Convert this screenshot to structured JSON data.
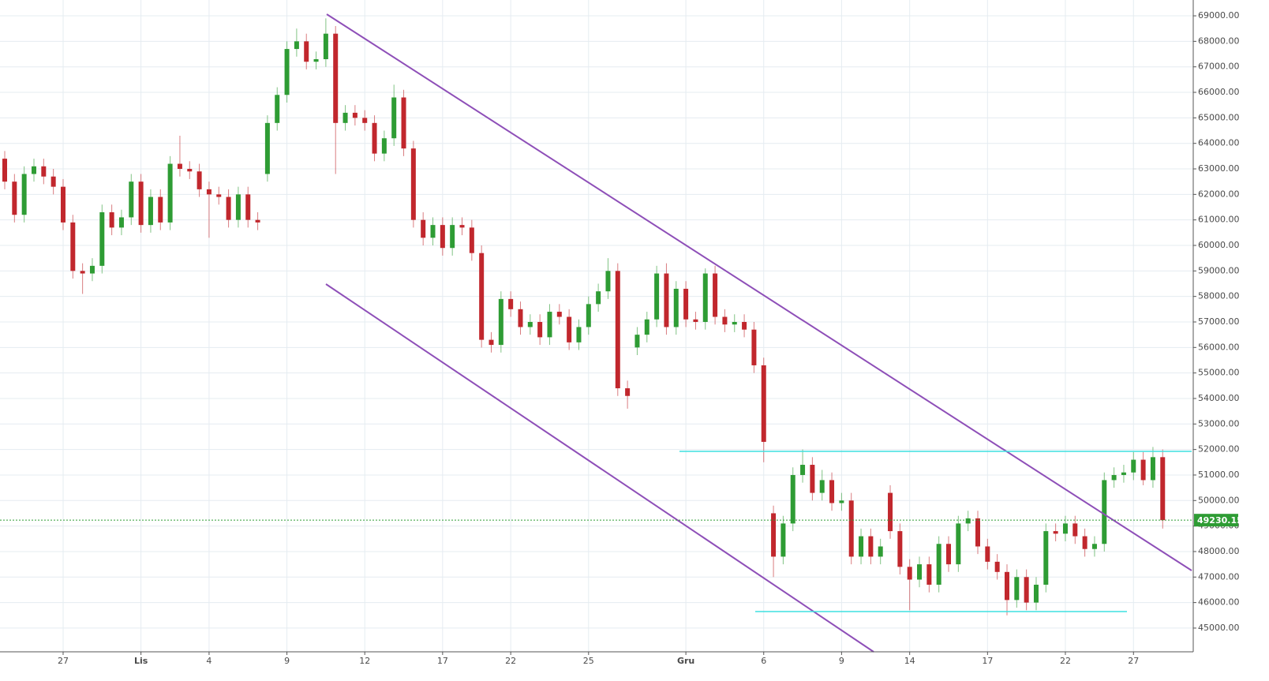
{
  "chart_data": {
    "type": "candlestick",
    "up_color": "#2e9c34",
    "down_color": "#c1272d",
    "grid": true,
    "last_price": 49230.15,
    "last_price_color": "#2e9c34",
    "categories": [
      null,
      null,
      null,
      null,
      null,
      null,
      "27",
      null,
      null,
      null,
      null,
      null,
      null,
      null,
      "Lis",
      null,
      null,
      null,
      null,
      null,
      null,
      "4",
      null,
      null,
      null,
      null,
      null,
      null,
      null,
      "9",
      null,
      null,
      null,
      null,
      null,
      null,
      null,
      "12",
      null,
      null,
      null,
      null,
      null,
      null,
      null,
      "17",
      null,
      null,
      null,
      null,
      null,
      null,
      "22",
      null,
      null,
      null,
      null,
      null,
      null,
      null,
      "25",
      null,
      null,
      null,
      null,
      null,
      null,
      null,
      null,
      null,
      "Gru",
      null,
      null,
      null,
      null,
      null,
      null,
      null,
      "6",
      null,
      null,
      null,
      null,
      null,
      null,
      null,
      "9",
      null,
      null,
      null,
      null,
      null,
      null,
      "14",
      null,
      null,
      null,
      null,
      null,
      null,
      null,
      "17",
      null,
      null,
      null,
      null,
      null,
      null,
      null,
      "22",
      null,
      null,
      null,
      null,
      null,
      null,
      "27",
      null,
      null,
      null
    ],
    "open": [
      63400,
      62500,
      61200,
      62800,
      63100,
      62700,
      62300,
      60900,
      59000,
      58900,
      59200,
      61300,
      60700,
      61100,
      62500,
      60800,
      61900,
      60900,
      63200,
      63000,
      62900,
      62200,
      62000,
      61900,
      61000,
      62000,
      61000,
      62800,
      64800,
      65900,
      67700,
      68000,
      67200,
      67300,
      68300,
      64800,
      65200,
      65000,
      64800,
      63600,
      64200,
      65800,
      63800,
      61000,
      60300,
      60800,
      59900,
      60800,
      60700,
      59700,
      56300,
      56100,
      57900,
      57500,
      56800,
      57000,
      56400,
      57400,
      57200,
      56200,
      56800,
      57700,
      58200,
      59000,
      54400,
      56000,
      56500,
      57100,
      58900,
      56800,
      58300,
      57100,
      57000,
      58900,
      57200,
      56900,
      57000,
      56700,
      55300,
      49500,
      47800,
      49100,
      51000,
      51400,
      50300,
      50800,
      49900,
      50000,
      47800,
      48600,
      47800,
      50300,
      48800,
      47400,
      46900,
      47500,
      46700,
      48300,
      47500,
      49100,
      49300,
      48200,
      47600,
      47200,
      46100,
      47000,
      46000,
      46700,
      48800,
      48700,
      49100,
      48600,
      48100,
      48300,
      50800,
      51000,
      51100,
      51600,
      50800,
      51700
    ],
    "high": [
      63700,
      62800,
      63100,
      63400,
      63400,
      63000,
      62600,
      61200,
      59300,
      59500,
      61600,
      61600,
      61400,
      62800,
      62800,
      62200,
      62200,
      63500,
      64300,
      63300,
      63200,
      62500,
      62300,
      62200,
      62300,
      62300,
      61300,
      65100,
      66200,
      68000,
      68500,
      68300,
      67600,
      68900,
      68600,
      65500,
      65500,
      65300,
      65100,
      64500,
      66300,
      66100,
      64100,
      61300,
      61100,
      61100,
      61100,
      61100,
      61000,
      60000,
      56600,
      58200,
      58200,
      57800,
      57300,
      57300,
      57700,
      57700,
      57500,
      57100,
      58000,
      58500,
      59500,
      59300,
      54700,
      56800,
      57400,
      59200,
      59300,
      58600,
      58600,
      57400,
      59100,
      59200,
      57500,
      57300,
      57300,
      57000,
      55600,
      49800,
      49400,
      51300,
      52000,
      51700,
      51200,
      51100,
      50300,
      50300,
      48900,
      48900,
      48500,
      50600,
      49100,
      47700,
      47800,
      47800,
      48600,
      48600,
      49400,
      49600,
      49600,
      48500,
      47900,
      47500,
      47300,
      47300,
      47000,
      49100,
      49100,
      49400,
      49400,
      48900,
      48600,
      51100,
      51300,
      51400,
      51900,
      51900,
      52100,
      52000
    ],
    "low": [
      62200,
      60900,
      60900,
      62500,
      62400,
      62000,
      60600,
      58700,
      58100,
      58600,
      58900,
      60400,
      60400,
      60800,
      60500,
      60500,
      60600,
      60600,
      62700,
      62600,
      61900,
      60300,
      61600,
      60700,
      60700,
      60700,
      60600,
      62500,
      64500,
      65600,
      67400,
      66900,
      66900,
      67000,
      62800,
      64500,
      64700,
      64500,
      63300,
      63300,
      63900,
      63500,
      60700,
      60000,
      60000,
      59600,
      59600,
      60400,
      59400,
      56000,
      55800,
      55800,
      57200,
      56500,
      56500,
      56100,
      56100,
      56900,
      55900,
      55900,
      56500,
      57400,
      57900,
      54100,
      53600,
      55700,
      56200,
      56800,
      56500,
      56500,
      56800,
      56700,
      56700,
      56900,
      56600,
      56600,
      56400,
      55000,
      51500,
      47000,
      47500,
      48800,
      50700,
      50000,
      50000,
      49600,
      49600,
      47500,
      47500,
      47500,
      47500,
      48500,
      47100,
      45700,
      46600,
      46400,
      46400,
      47200,
      47200,
      48800,
      47900,
      47300,
      46900,
      45500,
      45800,
      45700,
      45700,
      46400,
      48400,
      48400,
      48300,
      47800,
      47800,
      48000,
      50500,
      50700,
      50800,
      50600,
      50500,
      48900
    ],
    "close": [
      62500,
      61200,
      62800,
      63100,
      62700,
      62300,
      60900,
      59000,
      58900,
      59200,
      61300,
      60700,
      61100,
      62500,
      60800,
      61900,
      60900,
      63200,
      63000,
      62900,
      62200,
      62000,
      61900,
      61000,
      62000,
      61000,
      60900,
      64800,
      65900,
      67700,
      68000,
      67200,
      67300,
      68300,
      64800,
      65200,
      65000,
      64800,
      63600,
      64200,
      65800,
      63800,
      61000,
      60300,
      60800,
      59900,
      60800,
      60700,
      59700,
      56300,
      56100,
      57900,
      57500,
      56800,
      57000,
      56400,
      57400,
      57200,
      56200,
      56800,
      57700,
      58200,
      59000,
      54400,
      54100,
      56500,
      57100,
      58900,
      56800,
      58300,
      57100,
      57000,
      58900,
      57200,
      56900,
      57000,
      56700,
      55300,
      52300,
      47800,
      49100,
      51000,
      51400,
      50300,
      50800,
      49900,
      50000,
      47800,
      48600,
      47800,
      48200,
      48800,
      47400,
      46900,
      47500,
      46700,
      48300,
      47500,
      49100,
      49300,
      48200,
      47600,
      47200,
      46100,
      47000,
      46000,
      46700,
      48800,
      48700,
      49100,
      48600,
      48100,
      48300,
      50800,
      51000,
      51100,
      51600,
      50800,
      51700,
      49230.15
    ],
    "ylim": [
      44070,
      69620
    ],
    "yticks": [
      {
        "value": 45000,
        "label": "45000.00"
      },
      {
        "value": 46000,
        "label": "46000.00"
      },
      {
        "value": 47000,
        "label": "47000.00"
      },
      {
        "value": 48000,
        "label": "48000.00"
      },
      {
        "value": 49000,
        "label": "49000.00"
      },
      {
        "value": 50000,
        "label": "50000.00"
      },
      {
        "value": 51000,
        "label": "51000.00"
      },
      {
        "value": 52000,
        "label": "52000.00"
      },
      {
        "value": 53000,
        "label": "53000.00"
      },
      {
        "value": 54000,
        "label": "54000.00"
      },
      {
        "value": 55000,
        "label": "55000.00"
      },
      {
        "value": 56000,
        "label": "56000.00"
      },
      {
        "value": 57000,
        "label": "57000.00"
      },
      {
        "value": 58000,
        "label": "58000.00"
      },
      {
        "value": 59000,
        "label": "59000.00"
      },
      {
        "value": 60000,
        "label": "60000.00"
      },
      {
        "value": 61000,
        "label": "61000.00"
      },
      {
        "value": 62000,
        "label": "62000.00"
      },
      {
        "value": 63000,
        "label": "63000.00"
      },
      {
        "value": 64000,
        "label": "64000.00"
      },
      {
        "value": 65000,
        "label": "65000.00"
      },
      {
        "value": 66000,
        "label": "66000.00"
      },
      {
        "value": 67000,
        "label": "67000.00"
      },
      {
        "value": 68000,
        "label": "68000.00"
      },
      {
        "value": 69000,
        "label": "69000.00"
      }
    ]
  }
}
